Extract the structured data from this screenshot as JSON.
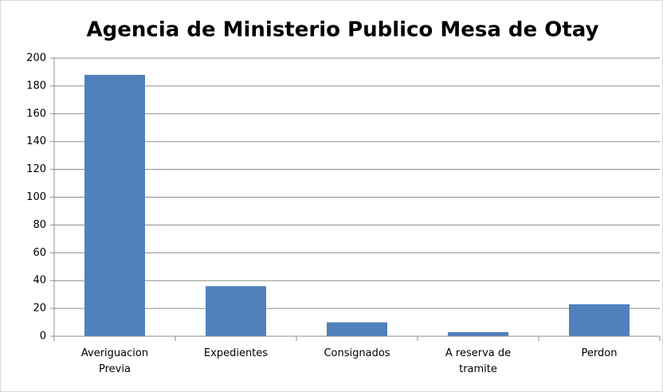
{
  "chart_data": {
    "type": "bar",
    "title": "Agencia de Ministerio Publico Mesa de Otay",
    "categories": [
      "Averiguacion Previa",
      "Expedientes",
      "Consignados",
      "A reserva de tramite",
      "Perdon"
    ],
    "values": [
      188,
      36,
      10,
      3,
      23
    ],
    "color": "#4f81bd",
    "ylim": [
      0,
      200
    ],
    "yticks": [
      0,
      20,
      40,
      60,
      80,
      100,
      120,
      140,
      160,
      180,
      200
    ],
    "grid": true
  }
}
